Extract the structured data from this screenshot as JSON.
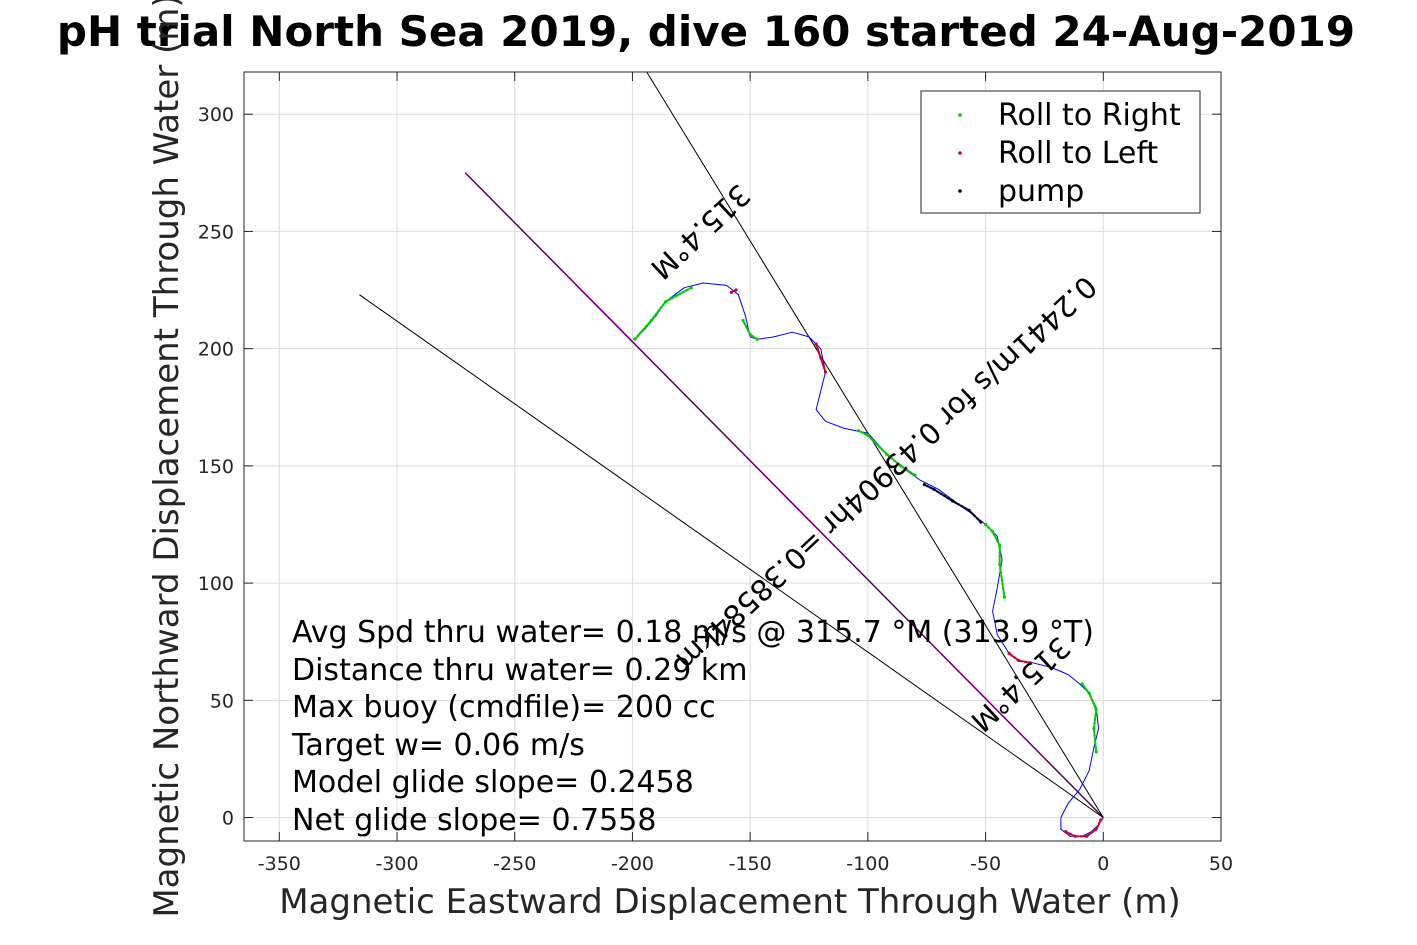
{
  "chart_data": {
    "type": "line",
    "title": "pH trial North Sea 2019, dive 160 started 24-Aug-2019",
    "xlabel": "Magnetic Eastward Displacement Through Water (m)",
    "ylabel": "Magnetic Northward Displacement Through Water (m)",
    "xlim": [
      -365,
      50
    ],
    "ylim": [
      -10,
      318
    ],
    "xticks": [
      -350,
      -300,
      -250,
      -200,
      -150,
      -100,
      -50,
      0,
      50
    ],
    "yticks": [
      0,
      50,
      100,
      150,
      200,
      250,
      300
    ],
    "grid": true,
    "legend": {
      "placement": "top-right",
      "entries": [
        "Roll to Right",
        "Roll to Left",
        "pump"
      ]
    },
    "colors": {
      "track": "#0000ff",
      "roll_right": "#00cc00",
      "roll_left": "#cc0033",
      "pump": "#000033",
      "heading_line": "#000000",
      "glide_line": "#cc00cc"
    },
    "track": [
      [
        0,
        0
      ],
      [
        -2,
        -3
      ],
      [
        -5,
        -6
      ],
      [
        -9,
        -8
      ],
      [
        -14,
        -8
      ],
      [
        -18,
        -5
      ],
      [
        -18,
        0
      ],
      [
        -15,
        6
      ],
      [
        -10,
        12
      ],
      [
        -6,
        20
      ],
      [
        -4,
        30
      ],
      [
        -2,
        38
      ],
      [
        -3,
        47
      ],
      [
        -6,
        53
      ],
      [
        -10,
        57
      ],
      [
        -15,
        61
      ],
      [
        -22,
        64
      ],
      [
        -30,
        66
      ],
      [
        -36,
        67
      ],
      [
        -40,
        70
      ],
      [
        -45,
        78
      ],
      [
        -47,
        88
      ],
      [
        -45,
        98
      ],
      [
        -43,
        110
      ],
      [
        -45,
        120
      ],
      [
        -50,
        125
      ],
      [
        -55,
        129
      ],
      [
        -62,
        134
      ],
      [
        -70,
        140
      ],
      [
        -78,
        144
      ],
      [
        -85,
        149
      ],
      [
        -92,
        155
      ],
      [
        -100,
        164
      ],
      [
        -110,
        166
      ],
      [
        -118,
        169
      ],
      [
        -122,
        174
      ],
      [
        -120,
        182
      ],
      [
        -118,
        190
      ],
      [
        -120,
        200
      ],
      [
        -125,
        205
      ],
      [
        -132,
        207
      ],
      [
        -140,
        205
      ],
      [
        -147,
        204
      ],
      [
        -150,
        205
      ],
      [
        -152,
        214
      ],
      [
        -155,
        223
      ],
      [
        -160,
        227
      ],
      [
        -170,
        228
      ],
      [
        -178,
        226
      ],
      [
        -186,
        220
      ],
      [
        -190,
        214
      ],
      [
        -195,
        208
      ],
      [
        -199,
        204
      ]
    ],
    "roll_right_segments": [
      [
        [
          -3,
          28
        ],
        [
          -4,
          38
        ],
        [
          -3,
          46
        ],
        [
          -6,
          53
        ],
        [
          -9,
          57
        ]
      ],
      [
        [
          -42,
          94
        ],
        [
          -44,
          108
        ],
        [
          -44,
          116
        ],
        [
          -47,
          122
        ],
        [
          -50,
          125
        ]
      ],
      [
        [
          -80,
          146
        ],
        [
          -86,
          150
        ],
        [
          -92,
          155
        ],
        [
          -100,
          163
        ],
        [
          -104,
          165
        ]
      ],
      [
        [
          -147,
          204
        ],
        [
          -150,
          206
        ],
        [
          -153,
          212
        ]
      ],
      [
        [
          -175,
          226
        ],
        [
          -186,
          220
        ],
        [
          -192,
          212
        ],
        [
          -199,
          204
        ]
      ]
    ],
    "roll_left_segments": [
      [
        [
          -16,
          -6
        ],
        [
          -12,
          -8
        ],
        [
          -7,
          -8
        ],
        [
          -3,
          -5
        ],
        [
          -1,
          -1
        ]
      ],
      [
        [
          -31,
          66
        ],
        [
          -36,
          67
        ],
        [
          -40,
          70
        ]
      ],
      [
        [
          -122,
          202
        ],
        [
          -120,
          196
        ],
        [
          -118,
          190
        ]
      ],
      [
        [
          -156,
          225
        ],
        [
          -158,
          224
        ]
      ]
    ],
    "pump_segments": [
      [
        [
          -52,
          126
        ],
        [
          -57,
          131
        ],
        [
          -64,
          135
        ],
        [
          -72,
          140
        ],
        [
          -76,
          142
        ]
      ]
    ],
    "heading_lines": [
      [
        [
          0,
          0
        ],
        [
          -200,
          328
        ]
      ],
      [
        [
          0,
          0
        ],
        [
          -316,
          223
        ]
      ]
    ],
    "glide_line": [
      [
        0,
        0
      ],
      [
        -271,
        275
      ]
    ],
    "rotated_labels": [
      {
        "text": "315.4°M",
        "x": -174,
        "y": 253,
        "angle_deg": 137
      },
      {
        "text": "0.2441m/s for 0.43904hr =0.38584km",
        "x": -95,
        "y": 150,
        "angle_deg": 137
      },
      {
        "text": "315.4°M",
        "x": -38,
        "y": 60,
        "angle_deg": 137
      }
    ],
    "annotations": [
      "Avg Spd thru water=  0.18 m/s @ 315.7 °M (313.9 °T)",
      "Distance thru water=  0.29 km",
      "Max buoy (cmdfile)= 200 cc",
      "Target w= 0.06 m/s",
      "Model glide slope= 0.2458",
      "Net glide slope= 0.7558"
    ]
  }
}
